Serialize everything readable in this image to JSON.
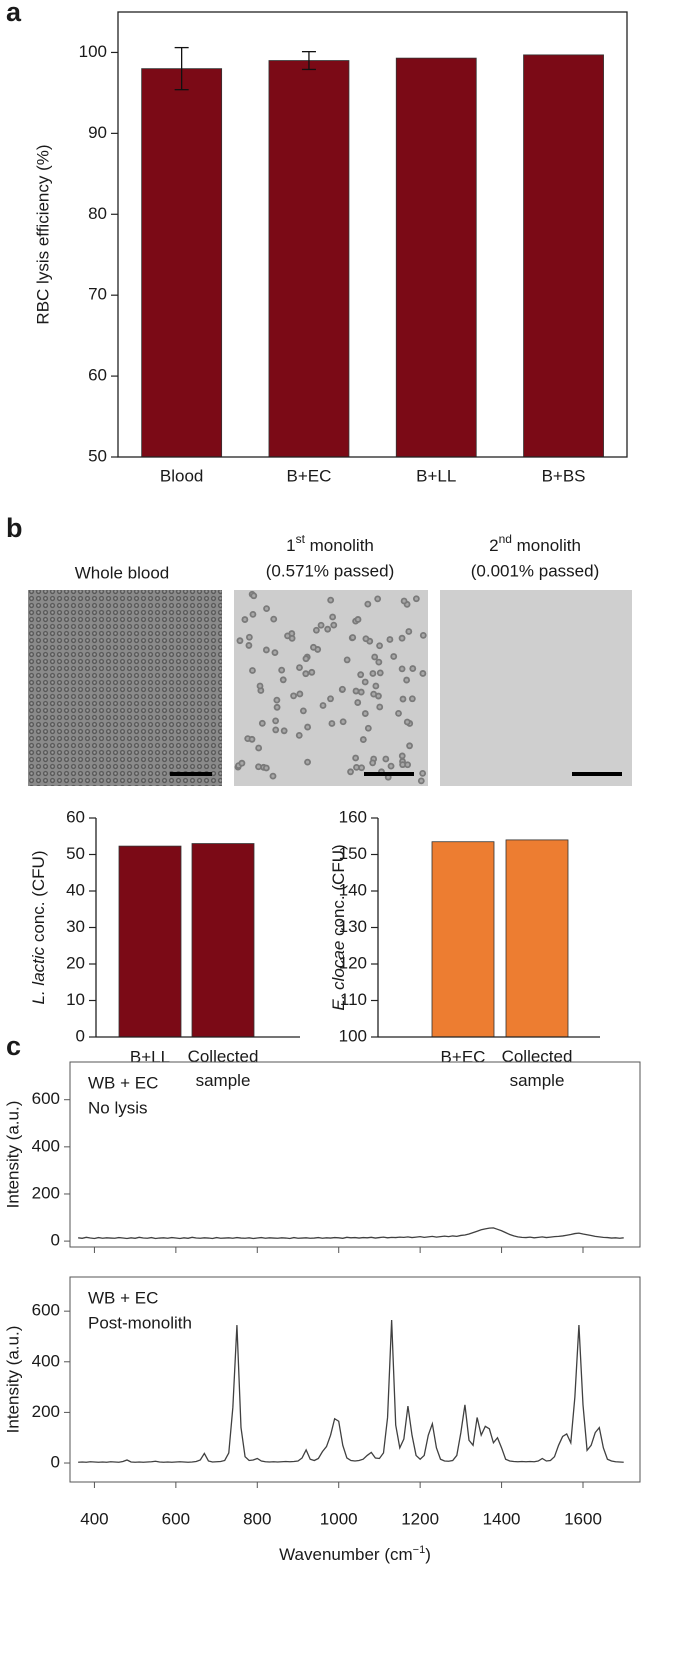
{
  "panel_labels": [
    "a",
    "b",
    "c"
  ],
  "images": [
    {
      "note": "Whole blood"
    },
    {
      "ordinal": "1",
      "suffix": "st",
      "title": " monolith",
      "note": "(0.571% passed)"
    },
    {
      "ordinal": "2",
      "suffix": "nd",
      "title": " monolith",
      "note": "(0.001% passed)"
    }
  ],
  "chart_data": [
    {
      "type": "bar",
      "ylabel": "RBC lysis efficiency (%)",
      "categories": [
        "Blood",
        "B+EC",
        "B+LL",
        "B+BS"
      ],
      "values": [
        98,
        99,
        99.3,
        99.7
      ],
      "errors": [
        2.6,
        1.1,
        null,
        null
      ],
      "color": "#7b0a16",
      "ylim": [
        50,
        105
      ],
      "yticks": [
        50,
        60,
        70,
        80,
        90,
        100
      ]
    },
    {
      "type": "bar",
      "ylabel": {
        "italic": "L. lactic",
        "text": " conc. (CFU)"
      },
      "categories": [
        "B+LL",
        "Collected sample"
      ],
      "values": [
        52.3,
        53
      ],
      "color": "#7b0a16",
      "ylim": [
        0,
        60
      ],
      "yticks": [
        0,
        10,
        20,
        30,
        40,
        50,
        60
      ]
    },
    {
      "type": "bar",
      "ylabel": {
        "italic": "E. clocae",
        "text": " conc. (CFU)"
      },
      "categories": [
        "B+EC",
        "Collected sample"
      ],
      "values": [
        153.5,
        154
      ],
      "color": "#ed7d31",
      "ylim": [
        100,
        160
      ],
      "yticks": [
        100,
        110,
        120,
        130,
        140,
        150,
        160
      ]
    },
    {
      "type": "line",
      "color": "#404040",
      "x": [
        360,
        370,
        380,
        390,
        400,
        410,
        420,
        430,
        440,
        450,
        460,
        470,
        480,
        490,
        500,
        510,
        520,
        530,
        540,
        550,
        560,
        570,
        580,
        590,
        600,
        610,
        620,
        630,
        640,
        650,
        660,
        670,
        680,
        690,
        700,
        710,
        720,
        730,
        740,
        750,
        760,
        770,
        780,
        790,
        800,
        810,
        820,
        830,
        840,
        850,
        860,
        870,
        880,
        890,
        900,
        910,
        920,
        930,
        940,
        950,
        960,
        970,
        980,
        990,
        1000,
        1010,
        1020,
        1030,
        1040,
        1050,
        1060,
        1070,
        1080,
        1090,
        1100,
        1110,
        1120,
        1130,
        1140,
        1150,
        1160,
        1170,
        1180,
        1190,
        1200,
        1210,
        1220,
        1230,
        1240,
        1250,
        1260,
        1270,
        1280,
        1290,
        1300,
        1310,
        1320,
        1330,
        1340,
        1350,
        1360,
        1370,
        1380,
        1390,
        1400,
        1410,
        1420,
        1430,
        1440,
        1450,
        1460,
        1470,
        1480,
        1490,
        1500,
        1510,
        1520,
        1530,
        1540,
        1550,
        1560,
        1570,
        1580,
        1590,
        1600,
        1610,
        1620,
        1630,
        1640,
        1650,
        1660,
        1670,
        1680,
        1690,
        1700
      ],
      "xlim": [
        340,
        1740
      ],
      "xticks": [
        400,
        600,
        800,
        1000,
        1200,
        1400,
        1600
      ],
      "xlabel": {
        "text": "Wavenumber (cm",
        "sup": "−1",
        "close": ")"
      },
      "series": [
        {
          "labels": [
            "WB + EC",
            "No lysis"
          ],
          "ylabel": "Intensity (a.u.)",
          "ylim": [
            -25,
            760
          ],
          "yticks": [
            0,
            200,
            400,
            600
          ],
          "values": [
            14,
            12,
            16,
            13,
            11,
            15,
            12,
            14,
            13,
            12,
            15,
            13,
            11,
            14,
            12,
            16,
            13,
            12,
            15,
            11,
            13,
            14,
            12,
            15,
            13,
            11,
            14,
            12,
            16,
            13,
            12,
            14,
            13,
            11,
            15,
            12,
            13,
            14,
            12,
            15,
            13,
            12,
            14,
            11,
            13,
            15,
            12,
            14,
            13,
            12,
            14,
            13,
            11,
            15,
            12,
            13,
            14,
            12,
            13,
            15,
            12,
            14,
            13,
            15,
            14,
            12,
            16,
            14,
            15,
            13,
            15,
            14,
            16,
            13,
            15,
            17,
            14,
            16,
            15,
            17,
            16,
            18,
            15,
            17,
            19,
            16,
            18,
            20,
            17,
            19,
            21,
            19,
            22,
            20,
            24,
            26,
            30,
            36,
            42,
            48,
            52,
            55,
            56,
            50,
            44,
            36,
            28,
            22,
            18,
            16,
            15,
            17,
            14,
            16,
            18,
            15,
            17,
            19,
            20,
            22,
            25,
            28,
            32,
            34,
            30,
            27,
            24,
            20,
            18,
            16,
            15,
            13,
            14,
            12,
            14
          ]
        },
        {
          "labels": [
            "WB + EC",
            "Post-monolith"
          ],
          "ylabel": "Intensity (a.u.)",
          "ylim": [
            -75,
            735
          ],
          "yticks": [
            0,
            200,
            400,
            600
          ],
          "values": [
            3,
            4,
            3,
            5,
            4,
            3,
            4,
            3,
            5,
            4,
            3,
            6,
            12,
            4,
            3,
            4,
            3,
            4,
            5,
            7,
            4,
            3,
            4,
            3,
            4,
            5,
            4,
            3,
            4,
            6,
            12,
            38,
            8,
            4,
            5,
            6,
            10,
            40,
            220,
            545,
            140,
            25,
            10,
            12,
            18,
            8,
            5,
            4,
            5,
            4,
            5,
            6,
            5,
            6,
            8,
            20,
            52,
            15,
            10,
            18,
            45,
            65,
            110,
            175,
            165,
            70,
            20,
            10,
            8,
            10,
            15,
            30,
            42,
            20,
            18,
            40,
            180,
            565,
            150,
            60,
            95,
            225,
            110,
            30,
            15,
            30,
            110,
            155,
            60,
            15,
            8,
            7,
            10,
            30,
            120,
            230,
            90,
            70,
            180,
            110,
            145,
            135,
            80,
            100,
            60,
            15,
            8,
            6,
            5,
            6,
            5,
            6,
            5,
            8,
            18,
            8,
            10,
            25,
            70,
            105,
            115,
            80,
            260,
            545,
            230,
            50,
            70,
            120,
            140,
            60,
            15,
            8,
            5,
            4,
            3
          ]
        }
      ]
    }
  ]
}
